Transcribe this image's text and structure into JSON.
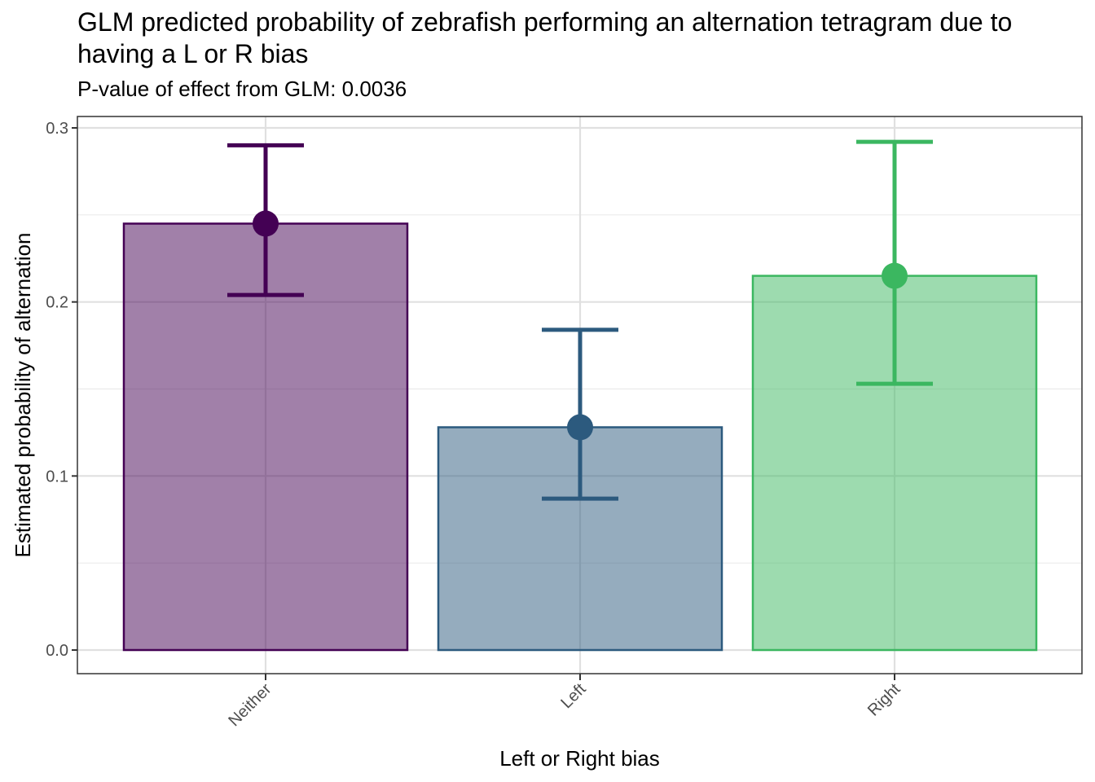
{
  "chart_data": {
    "type": "bar",
    "title": "GLM predicted probability of zebrafish performing an alternation tetragram due to having a L or R bias",
    "subtitle": "P-value of effect from GLM: 0.0036",
    "xlabel": "Left or Right bias",
    "ylabel": "Estimated probability of alternation",
    "categories": [
      "Neither",
      "Left",
      "Right"
    ],
    "values": [
      0.245,
      0.128,
      0.215
    ],
    "error_low": [
      0.204,
      0.087,
      0.153
    ],
    "error_high": [
      0.29,
      0.184,
      0.292
    ],
    "colors": [
      "#440154",
      "#2c5a7e",
      "#3bb760"
    ],
    "ylim": [
      -0.014,
      0.314
    ],
    "yticks": [
      "0.0",
      "0.1",
      "0.2",
      "0.3"
    ],
    "grid": true,
    "legend": "none"
  }
}
